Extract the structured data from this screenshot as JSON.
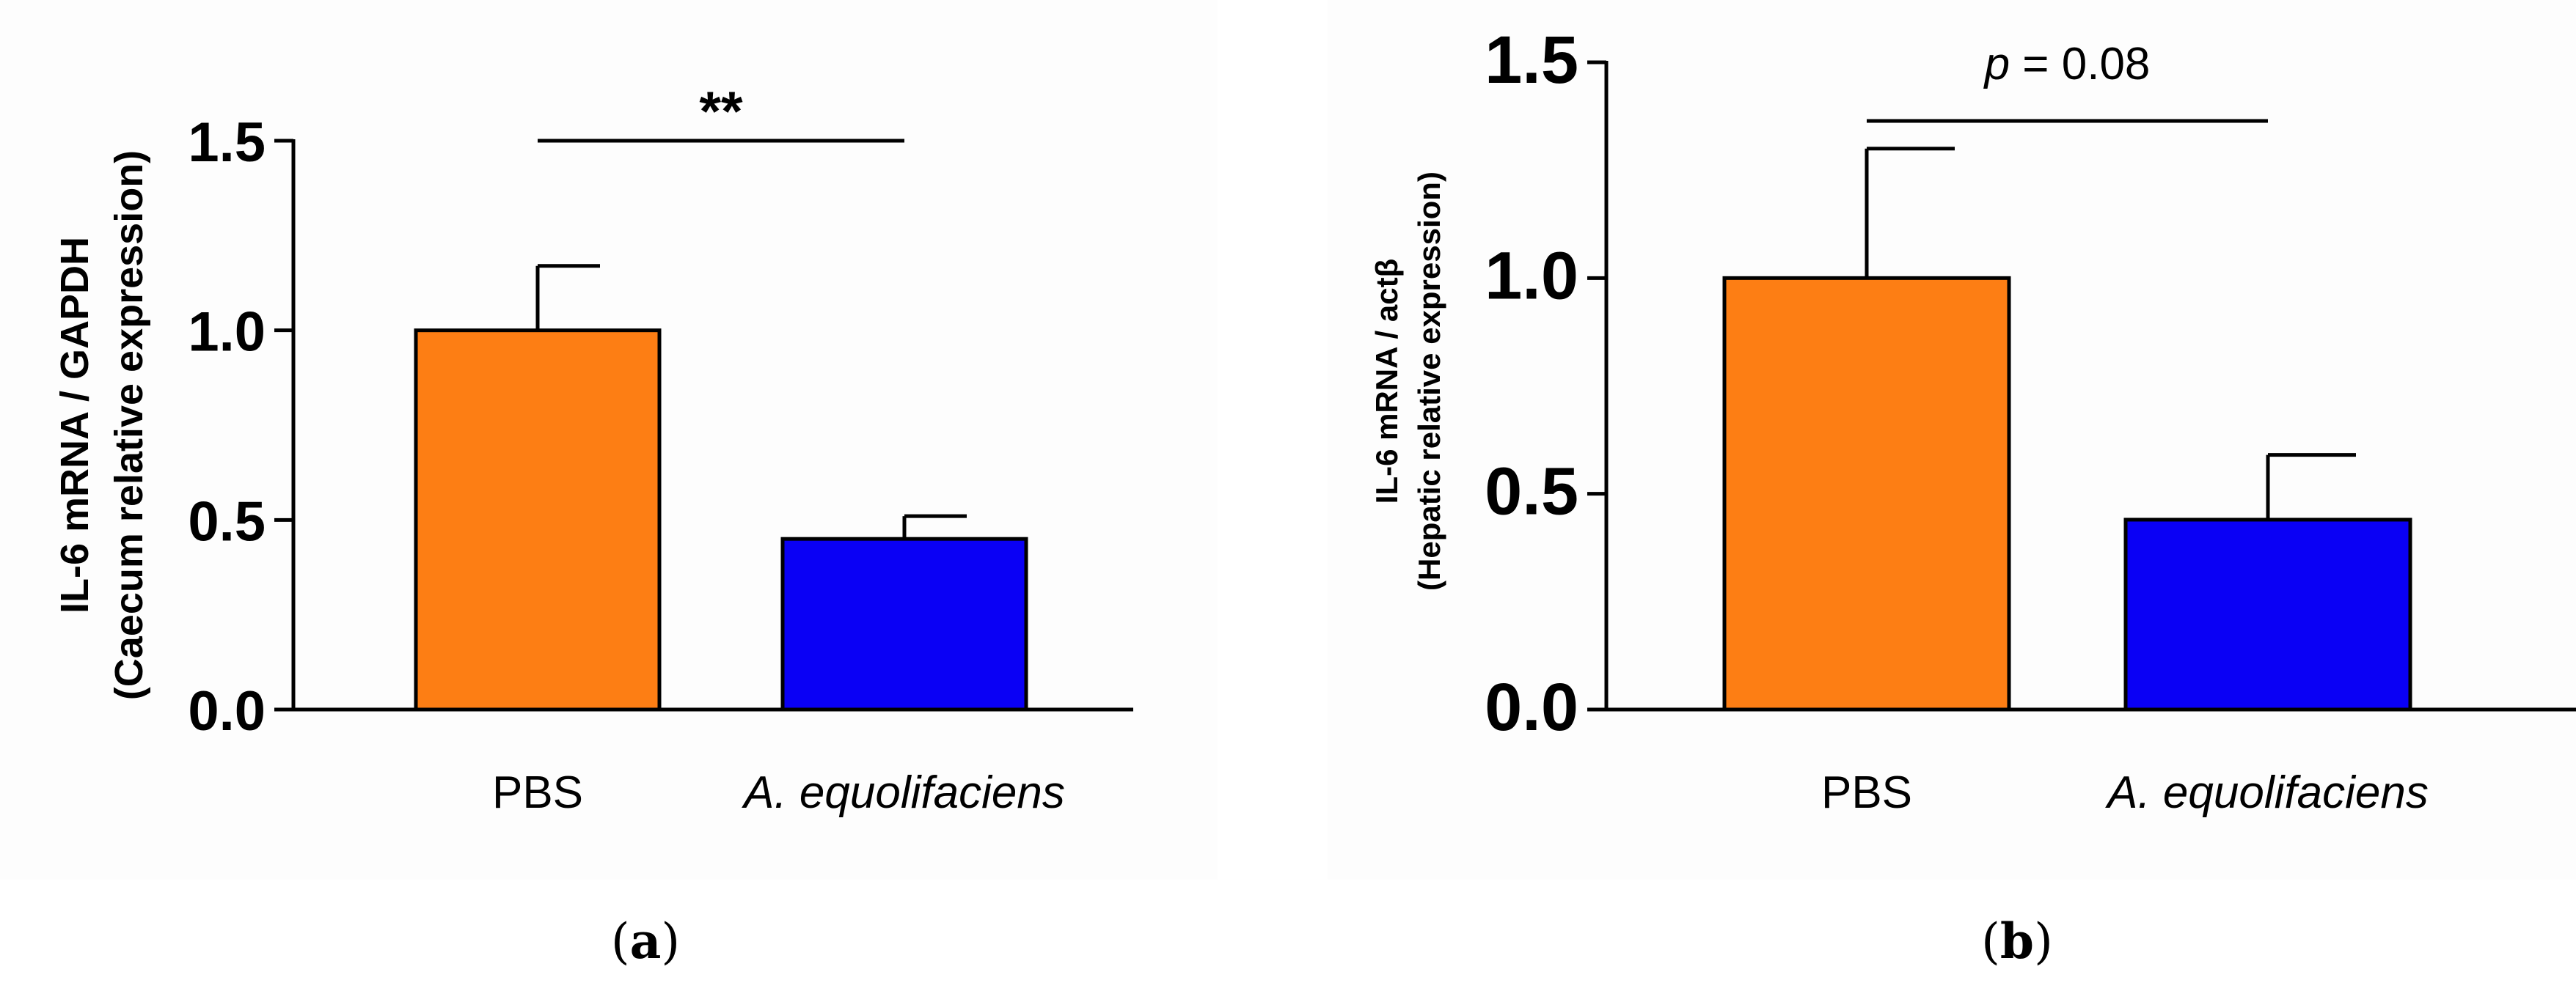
{
  "chart_data": [
    {
      "type": "bar",
      "panel_label": "a",
      "categories": [
        "PBS",
        "A. equolifaciens"
      ],
      "values": [
        1.0,
        0.45
      ],
      "errors": [
        0.17,
        0.06
      ],
      "colors": [
        "#fd7e14",
        "#0a00f5"
      ],
      "ylabel_line1": "IL-6 mRNA / GAPDH",
      "ylabel_line2": "(Caecum relative expression)",
      "ylim": [
        0,
        1.5
      ],
      "yticks": [
        "0.0",
        "0.5",
        "1.0",
        "1.5"
      ],
      "annotation": "**"
    },
    {
      "type": "bar",
      "panel_label": "b",
      "categories": [
        "PBS",
        "A. equolifaciens"
      ],
      "values": [
        1.0,
        0.44
      ],
      "errors": [
        0.3,
        0.15
      ],
      "colors": [
        "#fd7e14",
        "#0a00f5"
      ],
      "ylabel_line1": "IL-6 mRNA / actβ",
      "ylabel_line2": "(Hepatic relative expression)",
      "ylim": [
        0,
        1.5
      ],
      "yticks": [
        "0.0",
        "0.5",
        "1.0",
        "1.5"
      ],
      "annotation_p": "p",
      "annotation_value": " = 0.08"
    }
  ]
}
